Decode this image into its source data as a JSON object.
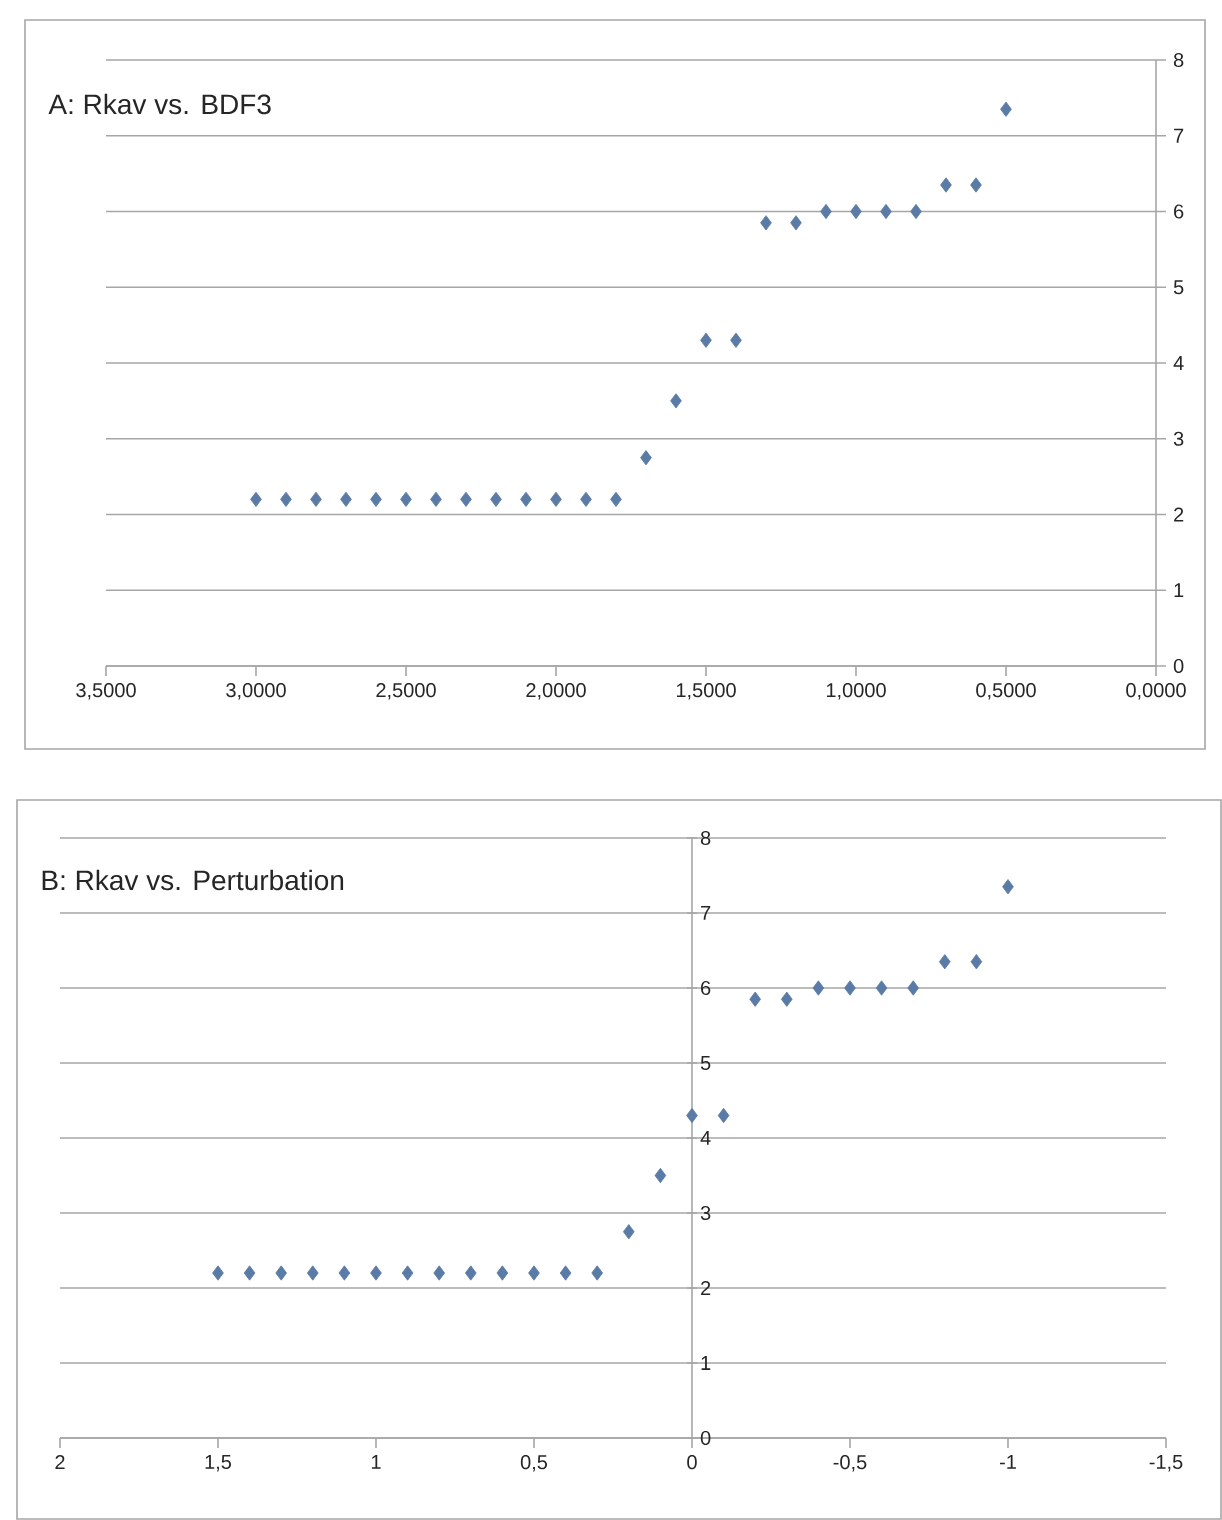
{
  "chart_data": [
    {
      "type": "scatter",
      "title": "A: Rkav vs. BDF3",
      "x": [
        3.0,
        2.9,
        2.8,
        2.7,
        2.6,
        2.5,
        2.4,
        2.3,
        2.2,
        2.1,
        2.0,
        1.9,
        1.8,
        1.7,
        1.6,
        1.5,
        1.4,
        1.3,
        1.2,
        1.1,
        1.0,
        0.9,
        0.8,
        0.7,
        0.6,
        0.5
      ],
      "series": [
        {
          "color": "#5a7ba6",
          "values": [
            2.2,
            2.2,
            2.2,
            2.2,
            2.2,
            2.2,
            2.2,
            2.2,
            2.2,
            2.2,
            2.2,
            2.2,
            2.2,
            2.75,
            3.5,
            4.3,
            4.3,
            5.85,
            5.85,
            6.0,
            6.0,
            6.0,
            6.0,
            6.35,
            6.35,
            7.35
          ]
        }
      ],
      "xlim": [
        3.5,
        0
      ],
      "ylim": [
        0,
        8
      ],
      "xticks": [
        {
          "value": 3.5,
          "label": "3,5000"
        },
        {
          "value": 3.0,
          "label": "3,0000"
        },
        {
          "value": 2.5,
          "label": "2,5000"
        },
        {
          "value": 2.0,
          "label": "2,0000"
        },
        {
          "value": 1.5,
          "label": "1,5000"
        },
        {
          "value": 1.0,
          "label": "1,0000"
        },
        {
          "value": 0.5,
          "label": "0,5000"
        },
        {
          "value": 0,
          "label": "0,0000"
        }
      ],
      "yticks": [
        0,
        1,
        2,
        3,
        4,
        5,
        6,
        7,
        8
      ],
      "grid": "y",
      "marker": "diamond"
    },
    {
      "type": "scatter",
      "title": "B: Rkav vs. Perturbation",
      "x": [
        1.5,
        1.4,
        1.3,
        1.2,
        1.1,
        1.0,
        0.9,
        0.8,
        0.7,
        0.6,
        0.5,
        0.4,
        0.3,
        0.2,
        0.1,
        0.0,
        -0.1,
        -0.2,
        -0.3,
        -0.4,
        -0.5,
        -0.6,
        -0.7,
        -0.8,
        -0.9,
        -1.0
      ],
      "series": [
        {
          "color": "#5a7ba6",
          "values": [
            2.2,
            2.2,
            2.2,
            2.2,
            2.2,
            2.2,
            2.2,
            2.2,
            2.2,
            2.2,
            2.2,
            2.2,
            2.2,
            2.75,
            3.5,
            4.3,
            4.3,
            5.85,
            5.85,
            6.0,
            6.0,
            6.0,
            6.0,
            6.35,
            6.35,
            7.35
          ]
        }
      ],
      "xlim": [
        2,
        -1.5
      ],
      "ylim": [
        0,
        8
      ],
      "xticks": [
        2,
        {
          "value": 1.5,
          "label": "1,5"
        },
        1,
        {
          "value": 0.5,
          "label": "0,5"
        },
        0,
        {
          "value": -0.5,
          "label": "-0,5"
        },
        -1,
        {
          "value": -1.5,
          "label": "-1,5"
        }
      ],
      "yticks": [
        0,
        1,
        2,
        3,
        4,
        5,
        6,
        7,
        8
      ],
      "grid": "y",
      "marker": "diamond"
    }
  ]
}
